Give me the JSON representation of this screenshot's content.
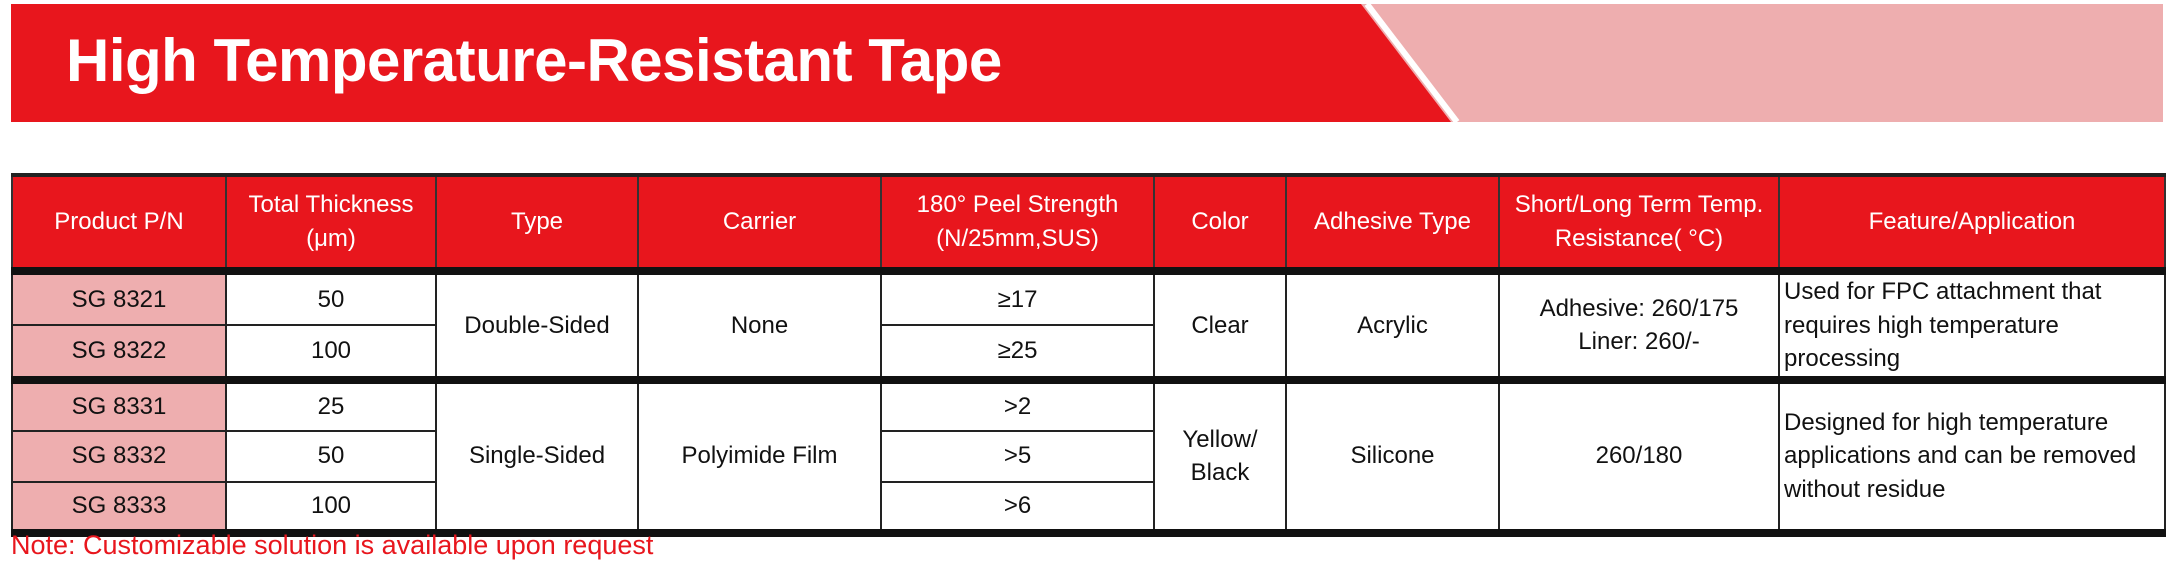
{
  "banner": {
    "title": "High Temperature-Resistant Tape",
    "colors": {
      "primary": "#E8161D",
      "secondary": "#EEAEAF"
    }
  },
  "table": {
    "headers": [
      "Product P/N",
      "Total Thickness (μm)",
      "Type",
      "Carrier",
      "180° Peel Strength (N/25mm,SUS)",
      "Color",
      "Adhesive Type",
      "Short/Long Term Temp. Resistance( °C)",
      "Feature/Application"
    ],
    "groups": [
      {
        "type": "Double-Sided",
        "carrier": "None",
        "color": "Clear",
        "adhesive": "Acrylic",
        "temp": [
          "Adhesive: 260/175",
          "Liner: 260/-"
        ],
        "feature": "Used for FPC attachment that requires high temperature processing",
        "rows": [
          {
            "pn": "SG 8321",
            "thickness": "50",
            "peel": "≥17"
          },
          {
            "pn": "SG 8322",
            "thickness": "100",
            "peel": "≥25"
          }
        ]
      },
      {
        "type": "Single-Sided",
        "carrier": "Polyimide Film",
        "color": "Yellow/ Black",
        "adhesive": "Silicone",
        "temp": [
          "260/180"
        ],
        "feature": "Designed for high temperature applications and can be removed without residue",
        "rows": [
          {
            "pn": "SG 8331",
            "thickness": "25",
            "peel": ">2"
          },
          {
            "pn": "SG 8332",
            "thickness": "50",
            "peel": ">5"
          },
          {
            "pn": "SG 8333",
            "thickness": "100",
            "peel": ">6"
          }
        ]
      }
    ]
  },
  "note": "Note: Customizable solution is available upon request"
}
